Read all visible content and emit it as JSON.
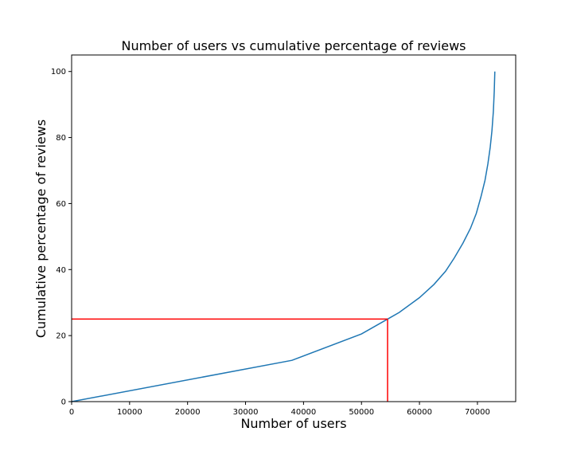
{
  "chart_data": {
    "type": "line",
    "title": "Number of users vs cumulative percentage of reviews",
    "xlabel": "Number of users",
    "ylabel": "Cumulative percentage of reviews",
    "xlim": [
      0,
      76600
    ],
    "ylim": [
      0,
      105
    ],
    "xticks": [
      0,
      10000,
      20000,
      30000,
      40000,
      50000,
      60000,
      70000
    ],
    "xtick_labels": [
      "0",
      "10000",
      "20000",
      "30000",
      "40000",
      "50000",
      "60000",
      "70000"
    ],
    "yticks": [
      0,
      20,
      40,
      60,
      80,
      100
    ],
    "ytick_labels": [
      "0",
      "20",
      "40",
      "60",
      "80",
      "100"
    ],
    "grid": false,
    "legend": "none",
    "series": [
      {
        "color": "#1f77b4",
        "x": [
          0,
          38000,
          50000,
          54500,
          56500,
          60000,
          62500,
          64500,
          66000,
          67500,
          68800,
          69800,
          70600,
          71300,
          71800,
          72200,
          72500,
          72750,
          72900,
          73000
        ],
        "y": [
          0,
          12.5,
          20.5,
          25,
          27,
          31.5,
          35.5,
          39.5,
          43.5,
          48,
          52.5,
          57,
          62,
          67,
          72,
          77,
          82,
          88,
          94,
          100
        ]
      }
    ],
    "reference_lines": [
      {
        "color": "#ff0000",
        "from": [
          0,
          25
        ],
        "to": [
          54500,
          25
        ]
      },
      {
        "color": "#ff0000",
        "from": [
          54500,
          0
        ],
        "to": [
          54500,
          25
        ]
      }
    ]
  }
}
